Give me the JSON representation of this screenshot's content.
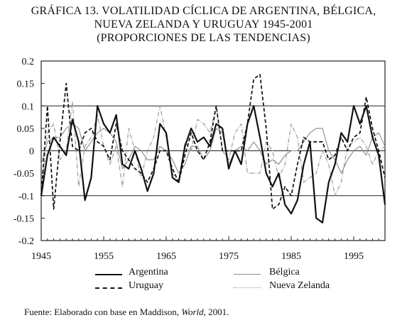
{
  "title": {
    "line1": "GRÁFICA 13. VOLATILIDAD CÍCLICA DE ARGENTINA, BÉLGICA,",
    "line2": "NUEVA ZELANDA Y URUGUAY 1945-2001",
    "line3": "(PROPORCIONES DE LAS TENDENCIAS)"
  },
  "source": {
    "prefix": "Fuente: Elaborado con base en Maddison, ",
    "work": "World",
    "suffix": ", 2001."
  },
  "chart_data": {
    "type": "line",
    "title": "GRÁFICA 13. VOLATILIDAD CÍCLICA DE ARGENTINA, BÉLGICA, NUEVA ZELANDA Y URUGUAY 1945-2001 (PROPORCIONES DE LAS TENDENCIAS)",
    "xlabel": "",
    "ylabel": "",
    "xlim": [
      1945,
      2000
    ],
    "ylim": [
      -0.2,
      0.2
    ],
    "xticks": [
      1945,
      1955,
      1965,
      1975,
      1985,
      1995
    ],
    "xtick_labels": [
      "1945",
      "1955",
      "1965",
      "1975",
      "1985",
      "1995"
    ],
    "yticks": [
      0.2,
      0.15,
      0.1,
      0.05,
      0,
      -0.05,
      -0.1,
      -0.15,
      -0.2
    ],
    "ytick_labels": [
      "0.2",
      "0.15",
      "0.1",
      "0.05",
      "0",
      "-0.05",
      "-0.1",
      "-0.15",
      "-0.2"
    ],
    "grid": "horizontal at 0.1, 0, -0.1",
    "legend_position": "bottom",
    "x": [
      1945,
      1946,
      1947,
      1948,
      1949,
      1950,
      1951,
      1952,
      1953,
      1954,
      1955,
      1956,
      1957,
      1958,
      1959,
      1960,
      1961,
      1962,
      1963,
      1964,
      1965,
      1966,
      1967,
      1968,
      1969,
      1970,
      1971,
      1972,
      1973,
      1974,
      1975,
      1976,
      1977,
      1978,
      1979,
      1980,
      1981,
      1982,
      1983,
      1984,
      1985,
      1986,
      1987,
      1988,
      1989,
      1990,
      1991,
      1992,
      1993,
      1994,
      1995,
      1996,
      1997,
      1998,
      1999,
      2000
    ],
    "series": [
      {
        "name": "Argentina",
        "style": "solid-thick",
        "color": "#111111",
        "values": [
          -0.1,
          -0.01,
          0.03,
          0.01,
          -0.01,
          0.07,
          0.02,
          -0.11,
          -0.06,
          0.1,
          0.06,
          0.04,
          0.08,
          -0.03,
          -0.04,
          0.0,
          -0.04,
          -0.09,
          -0.05,
          0.06,
          0.04,
          -0.06,
          -0.07,
          0.01,
          0.05,
          0.02,
          0.03,
          0.01,
          0.06,
          0.05,
          -0.04,
          0.0,
          -0.03,
          0.06,
          0.1,
          0.03,
          -0.05,
          -0.08,
          -0.05,
          -0.12,
          -0.14,
          -0.11,
          -0.03,
          0.02,
          -0.15,
          -0.16,
          -0.07,
          -0.03,
          0.04,
          0.02,
          0.1,
          0.06,
          0.1,
          0.03,
          -0.01,
          -0.12
        ]
      },
      {
        "name": "Bélgica",
        "style": "solid-thin",
        "color": "#8a8a8a",
        "values": [
          -0.03,
          0.02,
          0.03,
          0.03,
          0.05,
          0.06,
          0.05,
          0.0,
          0.02,
          0.04,
          0.05,
          0.04,
          0.02,
          -0.04,
          -0.02,
          0.01,
          0.0,
          -0.02,
          -0.02,
          0.01,
          0.0,
          -0.02,
          -0.05,
          -0.03,
          0.01,
          0.01,
          -0.02,
          0.0,
          0.05,
          0.04,
          -0.03,
          0.0,
          0.01,
          0.0,
          0.02,
          0.0,
          -0.03,
          -0.02,
          -0.03,
          -0.01,
          0.0,
          0.0,
          0.02,
          0.04,
          0.05,
          0.05,
          0.0,
          -0.02,
          -0.05,
          -0.02,
          0.0,
          0.01,
          -0.01,
          0.03,
          0.04,
          0.01
        ]
      },
      {
        "name": "Uruguay",
        "style": "dashed",
        "color": "#111111",
        "values": [
          -0.1,
          0.1,
          -0.13,
          0.02,
          0.15,
          0.01,
          0.0,
          0.04,
          0.05,
          0.02,
          0.01,
          -0.02,
          0.06,
          0.0,
          -0.02,
          -0.04,
          -0.05,
          -0.07,
          -0.04,
          0.0,
          0.0,
          -0.04,
          -0.07,
          -0.01,
          0.04,
          0.0,
          -0.02,
          0.02,
          0.1,
          0.0,
          0.0,
          0.0,
          0.0,
          0.06,
          0.16,
          0.17,
          0.05,
          -0.13,
          -0.12,
          -0.08,
          -0.1,
          -0.03,
          0.03,
          0.02,
          0.02,
          0.02,
          -0.02,
          -0.01,
          0.03,
          0.0,
          0.03,
          0.04,
          0.12,
          0.05,
          0.0,
          -0.06
        ]
      },
      {
        "name": "Nueva Zelanda",
        "style": "dash-dot",
        "color": "#9a9a9a",
        "values": [
          -0.1,
          0.04,
          0.06,
          -0.02,
          0.0,
          0.11,
          -0.08,
          0.01,
          0.03,
          0.08,
          0.01,
          -0.03,
          0.01,
          -0.08,
          0.05,
          0.0,
          -0.06,
          0.0,
          0.03,
          0.1,
          0.03,
          -0.05,
          -0.07,
          0.02,
          0.0,
          0.07,
          0.06,
          0.04,
          0.1,
          0.0,
          -0.02,
          0.04,
          0.06,
          -0.05,
          -0.05,
          -0.05,
          0.02,
          0.0,
          -0.06,
          -0.03,
          0.06,
          0.03,
          -0.07,
          -0.06,
          -0.05,
          0.0,
          -0.03,
          -0.1,
          -0.07,
          0.01,
          0.02,
          0.03,
          0.01,
          -0.03,
          0.0,
          0.01
        ]
      }
    ]
  }
}
